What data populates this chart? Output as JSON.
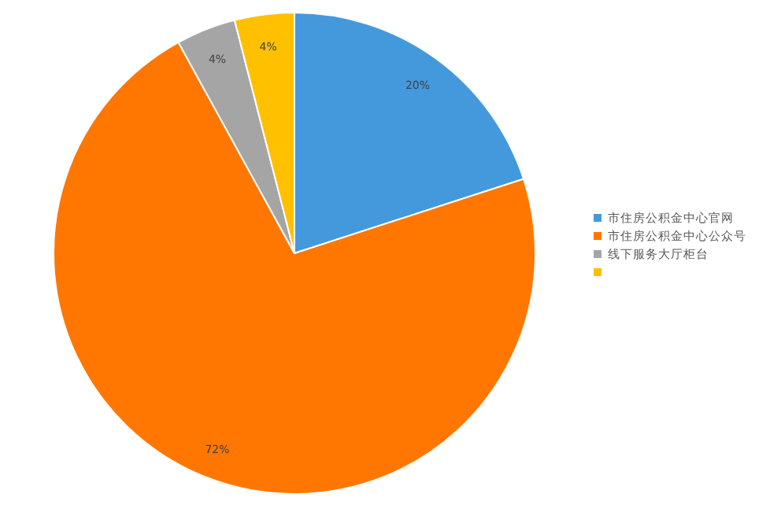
{
  "chart_data": {
    "type": "pie",
    "categories": [
      "市住房公积金中心官网",
      "市住房公积金中心公众号",
      "线下服务大厅柜台",
      null
    ],
    "values": [
      20,
      72,
      4,
      4
    ],
    "colors": [
      "#4499dd",
      "#ff7700",
      "#a5a5a5",
      "#ffc000"
    ],
    "value_labels": [
      "20%",
      "72%",
      "4%",
      "4%"
    ],
    "legend": "right"
  }
}
